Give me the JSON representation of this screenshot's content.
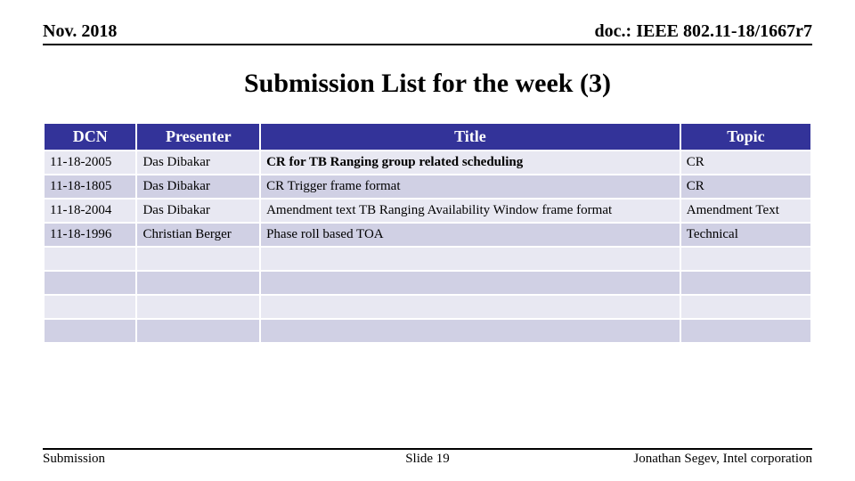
{
  "header": {
    "left": "Nov. 2018",
    "right": "doc.: IEEE 802.11-18/1667r7"
  },
  "title": "Submission List for the week (3)",
  "table": {
    "columns": [
      "DCN",
      "Presenter",
      "Title",
      "Topic"
    ],
    "rows": [
      {
        "dcn": "11-18-2005",
        "presenter": "Das Dibakar",
        "title": "CR for TB Ranging group related scheduling",
        "topic": "CR",
        "bold_title": true
      },
      {
        "dcn": "11-18-1805",
        "presenter": "Das Dibakar",
        "title": "CR Trigger frame format",
        "topic": "CR",
        "bold_title": false
      },
      {
        "dcn": "11-18-2004",
        "presenter": "Das Dibakar",
        "title": "Amendment text TB Ranging Availability Window frame format",
        "topic": "Amendment Text",
        "bold_title": false
      },
      {
        "dcn": "11-18-1996",
        "presenter": "Christian Berger",
        "title": "Phase roll based TOA",
        "topic": "Technical",
        "bold_title": false
      },
      {
        "dcn": "",
        "presenter": "",
        "title": "",
        "topic": "",
        "bold_title": false
      },
      {
        "dcn": "",
        "presenter": "",
        "title": "",
        "topic": "",
        "bold_title": false
      },
      {
        "dcn": "",
        "presenter": "",
        "title": "",
        "topic": "",
        "bold_title": false
      },
      {
        "dcn": "",
        "presenter": "",
        "title": "",
        "topic": "",
        "bold_title": false
      }
    ]
  },
  "footer": {
    "left": "Submission",
    "center": "Slide 19",
    "right": "Jonathan Segev, Intel corporation"
  },
  "colors": {
    "header_bg": "#333399",
    "row_odd": "#e8e8f2",
    "row_even": "#d0d0e4"
  }
}
